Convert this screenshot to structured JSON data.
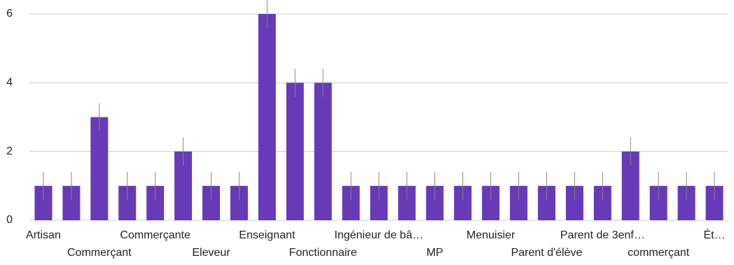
{
  "chart_data": {
    "type": "bar",
    "categories": [
      "Artisan",
      null,
      "Commerçant",
      null,
      "Commerçante",
      null,
      "Eleveur",
      null,
      "Enseignant",
      null,
      "Fonctionnaire",
      null,
      "Ingénieur de bâ…",
      null,
      "MP",
      null,
      "Menuisier",
      null,
      "Parent d'élève",
      null,
      "Parent de 3enf…",
      null,
      "commerçant",
      null,
      "Ét…"
    ],
    "values": [
      1,
      1,
      3,
      1,
      1,
      2,
      1,
      1,
      6,
      4,
      4,
      1,
      1,
      1,
      1,
      1,
      1,
      1,
      1,
      1,
      1,
      2,
      1,
      1,
      1
    ],
    "color": "#673ab7",
    "ylim": [
      0,
      6
    ],
    "yticks": [
      0,
      2,
      4,
      6
    ],
    "grid": true
  }
}
